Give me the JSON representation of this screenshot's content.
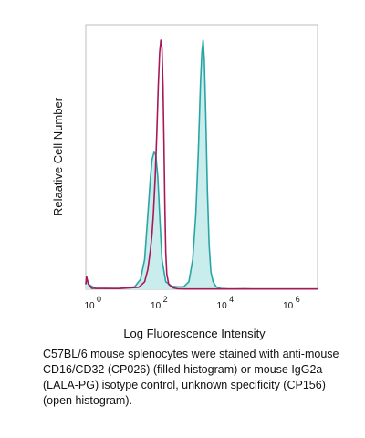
{
  "chart_data": {
    "type": "area",
    "title": "",
    "xlabel": "Log Fluorescence Intensity",
    "ylabel": "Relaative Cell Number",
    "x_scale": "log",
    "xlim": [
      1,
      10000000
    ],
    "ylim": [
      0,
      1.0
    ],
    "grid": false,
    "legend": "none",
    "x_ticks": [
      {
        "base": "10",
        "exp": "0",
        "value": 1
      },
      {
        "base": "10",
        "exp": "2",
        "value": 100
      },
      {
        "base": "10",
        "exp": "4",
        "value": 10000
      },
      {
        "base": "10",
        "exp": "6",
        "value": 1000000
      }
    ],
    "series": [
      {
        "style": "filled",
        "color": "#2aa5a5",
        "fill": "#c9ecec",
        "x": [
          1,
          1.05,
          1.2,
          2,
          10,
          30,
          45,
          60,
          75,
          90,
          100,
          115,
          130,
          150,
          170,
          200,
          260,
          400,
          600,
          900,
          1300,
          1700,
          2100,
          2500,
          2900,
          3200,
          3500,
          3800,
          4200,
          4700,
          5300,
          6000,
          7000,
          8500,
          10000,
          12500,
          16000,
          20000,
          30000,
          60000,
          100000,
          1000000,
          10000000
        ],
        "y": [
          0.02,
          0.05,
          0.02,
          0.003,
          0.003,
          0.01,
          0.04,
          0.12,
          0.3,
          0.45,
          0.52,
          0.55,
          0.54,
          0.45,
          0.3,
          0.12,
          0.03,
          0.012,
          0.01,
          0.01,
          0.03,
          0.12,
          0.3,
          0.55,
          0.82,
          0.95,
          1.0,
          0.92,
          0.7,
          0.4,
          0.18,
          0.07,
          0.03,
          0.012,
          0.005,
          0.003,
          0.002,
          0.001,
          0.001,
          0.002,
          0.001,
          0.001,
          0.001
        ]
      },
      {
        "style": "open",
        "color": "#a8185a",
        "fill": "none",
        "x": [
          1,
          1.05,
          1.2,
          1.5,
          10,
          40,
          60,
          75,
          90,
          100,
          110,
          125,
          140,
          155,
          170,
          185,
          200,
          215,
          230,
          245,
          260,
          280,
          320,
          420,
          600,
          1000,
          10000,
          100000,
          10000000
        ],
        "y": [
          0.02,
          0.05,
          0.02,
          0.004,
          0.003,
          0.008,
          0.03,
          0.08,
          0.16,
          0.22,
          0.3,
          0.45,
          0.63,
          0.82,
          0.95,
          1.0,
          0.97,
          0.82,
          0.58,
          0.33,
          0.15,
          0.06,
          0.02,
          0.006,
          0.002,
          0.001,
          0.001,
          0.001,
          0.001
        ]
      }
    ]
  },
  "caption": "C57BL/6 mouse splenocytes were stained with anti-mouse CD16/CD32 (CP026) (filled histogram) or mouse IgG2a (LALA-PG) isotype control, unknown specificity (CP156) (open histogram)."
}
